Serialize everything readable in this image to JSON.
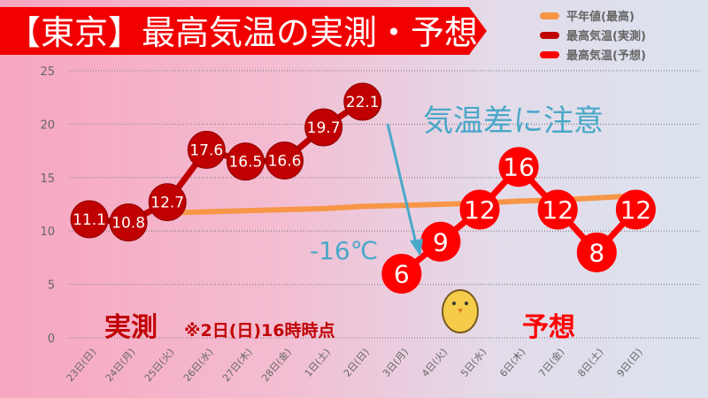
{
  "chart_data": {
    "type": "line",
    "title": "【東京】最高気温の実測・予想",
    "categories": [
      "23日(日)",
      "24日(月)",
      "25日(火)",
      "26日(水)",
      "27日(木)",
      "28日(金)",
      "1日(土)",
      "2日(日)",
      "3日(月)",
      "4日(火)",
      "5日(水)",
      "6日(木)",
      "7日(金)",
      "8日(土)",
      "9日(日)"
    ],
    "ylim": [
      0,
      25
    ],
    "yticks": [
      0,
      5,
      10,
      15,
      20,
      25
    ],
    "grid": true,
    "legend_position": "top-right",
    "series": [
      {
        "name": "平年値(最高)",
        "color": "#f79646",
        "values": [
          11.5,
          11.6,
          11.7,
          11.8,
          11.9,
          12.0,
          12.1,
          12.3,
          12.4,
          12.5,
          12.6,
          12.8,
          12.9,
          13.1,
          13.3
        ]
      },
      {
        "name": "最高気温(実測)",
        "color": "#c00000",
        "values": [
          11.1,
          10.8,
          12.7,
          17.6,
          16.5,
          16.6,
          19.7,
          22.1,
          null,
          null,
          null,
          null,
          null,
          null,
          null
        ]
      },
      {
        "name": "最高気温(予想)",
        "color": "#ff0000",
        "values": [
          null,
          null,
          null,
          null,
          null,
          null,
          null,
          null,
          6,
          9,
          12,
          16,
          12,
          8,
          12
        ]
      }
    ],
    "annotations": {
      "warning": "気温差に注意",
      "diff": "-16℃",
      "observed": "実測",
      "observed_note": "※2日(日)16時時点",
      "forecast": "予想"
    }
  }
}
